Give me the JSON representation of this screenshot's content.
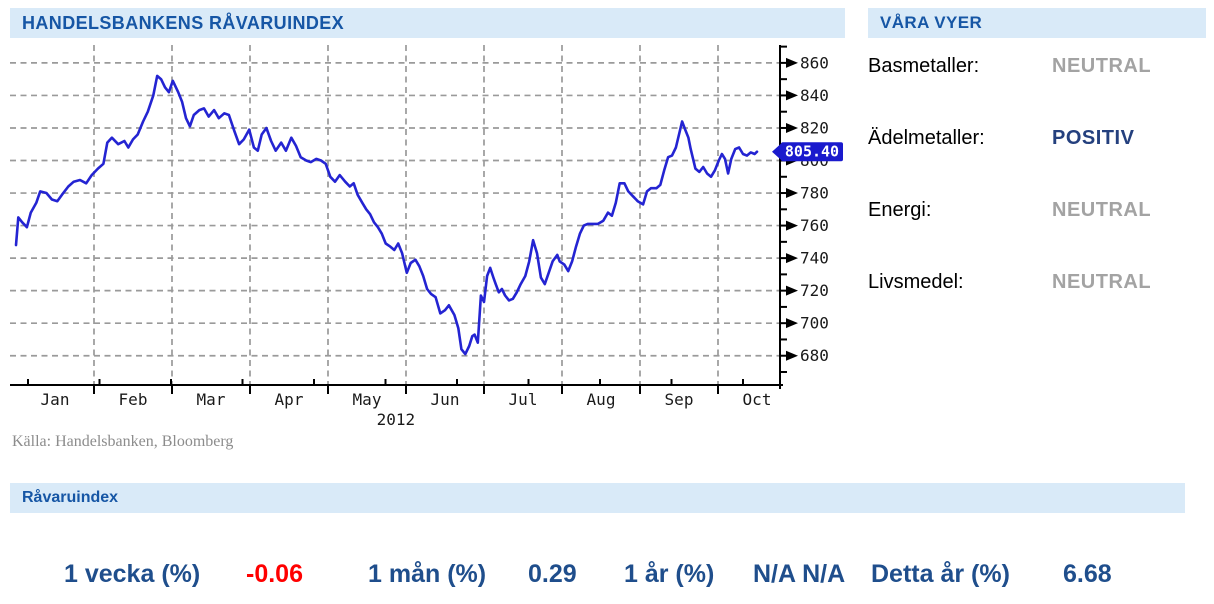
{
  "left_panel": {
    "title": "HANDELSBANKENS RÅVARUINDEX",
    "source": "Källa: Handelsbanken, Bloomberg"
  },
  "views_panel": {
    "title": "VÅRA VYER",
    "items": [
      {
        "label": "Basmetaller:",
        "value": "NEUTRAL",
        "value_color": "#A3A3A3"
      },
      {
        "label": "Ädelmetaller:",
        "value": "POSITIV",
        "value_color": "#24407E"
      },
      {
        "label": "Energi:",
        "value": "NEUTRAL",
        "value_color": "#A3A3A3"
      },
      {
        "label": "Livsmedel:",
        "value": "NEUTRAL",
        "value_color": "#A3A3A3"
      }
    ]
  },
  "summary": {
    "title": "Råvaruindex",
    "label_color": "#1F4E8C",
    "stats": [
      {
        "label": "1 vecka (%)",
        "value": "-0.06",
        "value_color": "#FF0000"
      },
      {
        "label": "1 mån (%)",
        "value": "0.29",
        "value_color": "#1F4E8C"
      },
      {
        "label": "1 år (%)",
        "value": "N/A N/A",
        "value_color": "#1F4E8C"
      },
      {
        "label": "Detta år (%)",
        "value": "6.68",
        "value_color": "#1F4E8C"
      }
    ]
  },
  "chart_data": {
    "type": "line",
    "title": "HANDELSBANKENS RÅVARUINDEX",
    "x_axis": {
      "months": [
        "Jan",
        "Feb",
        "Mar",
        "Apr",
        "May",
        "Jun",
        "Jul",
        "Aug",
        "Sep",
        "Oct"
      ],
      "year_label": "2012"
    },
    "y_axis": {
      "ticks": [
        680,
        700,
        720,
        740,
        760,
        780,
        800,
        820,
        840,
        860
      ],
      "range": [
        662,
        871
      ],
      "minor_step": 10
    },
    "last_price": 805.4,
    "last_price_label": "805.40",
    "line_color": "#2424D2",
    "tag_color": "#1A1ACD",
    "grid": true,
    "points": [
      [
        0.0,
        748
      ],
      [
        0.03,
        765
      ],
      [
        0.08,
        762
      ],
      [
        0.14,
        759
      ],
      [
        0.19,
        768
      ],
      [
        0.26,
        774
      ],
      [
        0.31,
        781
      ],
      [
        0.39,
        780
      ],
      [
        0.46,
        776
      ],
      [
        0.53,
        775
      ],
      [
        0.59,
        779
      ],
      [
        0.67,
        784
      ],
      [
        0.74,
        787
      ],
      [
        0.82,
        788
      ],
      [
        0.9,
        786
      ],
      [
        0.97,
        791
      ],
      [
        1.05,
        795
      ],
      [
        1.12,
        798
      ],
      [
        1.17,
        811
      ],
      [
        1.23,
        814
      ],
      [
        1.31,
        810
      ],
      [
        1.39,
        812
      ],
      [
        1.44,
        808
      ],
      [
        1.5,
        813
      ],
      [
        1.56,
        816
      ],
      [
        1.63,
        824
      ],
      [
        1.69,
        830
      ],
      [
        1.76,
        840
      ],
      [
        1.81,
        852
      ],
      [
        1.86,
        850
      ],
      [
        1.91,
        845
      ],
      [
        1.96,
        842
      ],
      [
        2.01,
        849
      ],
      [
        2.08,
        842
      ],
      [
        2.13,
        836
      ],
      [
        2.18,
        826
      ],
      [
        2.23,
        821
      ],
      [
        2.28,
        828
      ],
      [
        2.35,
        831
      ],
      [
        2.41,
        832
      ],
      [
        2.47,
        827
      ],
      [
        2.54,
        831
      ],
      [
        2.6,
        826
      ],
      [
        2.67,
        829
      ],
      [
        2.73,
        828
      ],
      [
        2.8,
        818
      ],
      [
        2.86,
        810
      ],
      [
        2.92,
        813
      ],
      [
        2.99,
        819
      ],
      [
        3.05,
        808
      ],
      [
        3.1,
        806
      ],
      [
        3.15,
        816
      ],
      [
        3.21,
        820
      ],
      [
        3.27,
        812
      ],
      [
        3.33,
        806
      ],
      [
        3.4,
        811
      ],
      [
        3.46,
        806
      ],
      [
        3.53,
        814
      ],
      [
        3.59,
        809
      ],
      [
        3.65,
        802
      ],
      [
        3.72,
        800
      ],
      [
        3.78,
        799
      ],
      [
        3.85,
        801
      ],
      [
        3.91,
        800
      ],
      [
        3.97,
        798
      ],
      [
        4.03,
        790
      ],
      [
        4.09,
        787
      ],
      [
        4.15,
        791
      ],
      [
        4.22,
        787
      ],
      [
        4.28,
        784
      ],
      [
        4.33,
        786
      ],
      [
        4.38,
        779
      ],
      [
        4.44,
        774
      ],
      [
        4.49,
        770
      ],
      [
        4.54,
        767
      ],
      [
        4.59,
        762
      ],
      [
        4.64,
        759
      ],
      [
        4.69,
        755
      ],
      [
        4.74,
        749
      ],
      [
        4.8,
        747
      ],
      [
        4.85,
        745
      ],
      [
        4.9,
        749
      ],
      [
        4.95,
        743
      ],
      [
        5.01,
        731
      ],
      [
        5.06,
        737
      ],
      [
        5.12,
        739
      ],
      [
        5.17,
        735
      ],
      [
        5.22,
        729
      ],
      [
        5.27,
        721
      ],
      [
        5.32,
        718
      ],
      [
        5.38,
        716
      ],
      [
        5.44,
        706
      ],
      [
        5.5,
        708
      ],
      [
        5.55,
        711
      ],
      [
        5.62,
        705
      ],
      [
        5.67,
        697
      ],
      [
        5.71,
        684
      ],
      [
        5.76,
        681
      ],
      [
        5.81,
        686
      ],
      [
        5.85,
        692
      ],
      [
        5.88,
        693
      ],
      [
        5.92,
        688
      ],
      [
        5.96,
        717
      ],
      [
        6.0,
        713
      ],
      [
        6.04,
        729
      ],
      [
        6.08,
        734
      ],
      [
        6.12,
        728
      ],
      [
        6.15,
        724
      ],
      [
        6.19,
        719
      ],
      [
        6.23,
        721
      ],
      [
        6.27,
        717
      ],
      [
        6.32,
        714
      ],
      [
        6.37,
        715
      ],
      [
        6.42,
        719
      ],
      [
        6.47,
        724
      ],
      [
        6.53,
        729
      ],
      [
        6.58,
        738
      ],
      [
        6.63,
        751
      ],
      [
        6.68,
        743
      ],
      [
        6.73,
        728
      ],
      [
        6.78,
        724
      ],
      [
        6.83,
        731
      ],
      [
        6.88,
        738
      ],
      [
        6.94,
        742
      ],
      [
        6.97,
        738
      ],
      [
        7.03,
        736
      ],
      [
        7.08,
        732
      ],
      [
        7.13,
        738
      ],
      [
        7.18,
        747
      ],
      [
        7.23,
        755
      ],
      [
        7.28,
        760
      ],
      [
        7.33,
        761
      ],
      [
        7.4,
        761
      ],
      [
        7.46,
        761
      ],
      [
        7.53,
        763
      ],
      [
        7.59,
        768
      ],
      [
        7.64,
        766
      ],
      [
        7.69,
        774
      ],
      [
        7.74,
        786
      ],
      [
        7.8,
        786
      ],
      [
        7.85,
        781
      ],
      [
        7.91,
        778
      ],
      [
        7.97,
        775
      ],
      [
        8.04,
        773
      ],
      [
        8.09,
        781
      ],
      [
        8.14,
        783
      ],
      [
        8.21,
        783
      ],
      [
        8.26,
        785
      ],
      [
        8.31,
        794
      ],
      [
        8.36,
        802
      ],
      [
        8.41,
        803
      ],
      [
        8.46,
        808
      ],
      [
        8.51,
        818
      ],
      [
        8.54,
        824
      ],
      [
        8.58,
        819
      ],
      [
        8.62,
        814
      ],
      [
        8.65,
        807
      ],
      [
        8.71,
        795
      ],
      [
        8.76,
        793
      ],
      [
        8.81,
        796
      ],
      [
        8.86,
        792
      ],
      [
        8.91,
        790
      ],
      [
        8.96,
        794
      ],
      [
        9.01,
        800
      ],
      [
        9.05,
        804
      ],
      [
        9.09,
        801
      ],
      [
        9.13,
        792
      ],
      [
        9.17,
        801
      ],
      [
        9.22,
        807
      ],
      [
        9.27,
        808
      ],
      [
        9.32,
        804
      ],
      [
        9.37,
        803
      ],
      [
        9.42,
        805
      ],
      [
        9.47,
        804
      ],
      [
        9.5,
        805.4
      ]
    ]
  }
}
